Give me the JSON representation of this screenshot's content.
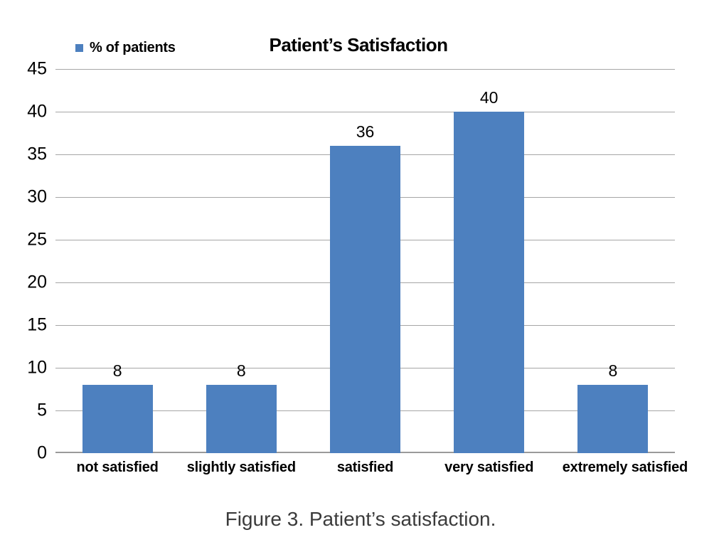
{
  "chart_data": {
    "type": "bar",
    "title": "Patient’s Satisfaction",
    "legend": {
      "label": "% of patients",
      "position": "top-left"
    },
    "categories": [
      "not satisfied",
      "slightly satisfied",
      "satisfied",
      "very satisfied",
      "extremely satisfied"
    ],
    "values": [
      8,
      8,
      36,
      40,
      8
    ],
    "value_labels": [
      "8",
      "8",
      "36",
      "40",
      "8"
    ],
    "ylim": [
      0,
      45
    ],
    "yticks": [
      0,
      5,
      10,
      15,
      20,
      25,
      30,
      35,
      40,
      45
    ],
    "xlabel": "",
    "ylabel": "",
    "grid": "horizontal",
    "colors": {
      "bar_fill": "#4d80bf",
      "gridline": "#a6a6a6",
      "axis_line": "#9a9a9a",
      "text": "#000000",
      "caption_text": "#3b3b3b"
    }
  },
  "caption": "Figure 3. Patient’s satisfaction."
}
